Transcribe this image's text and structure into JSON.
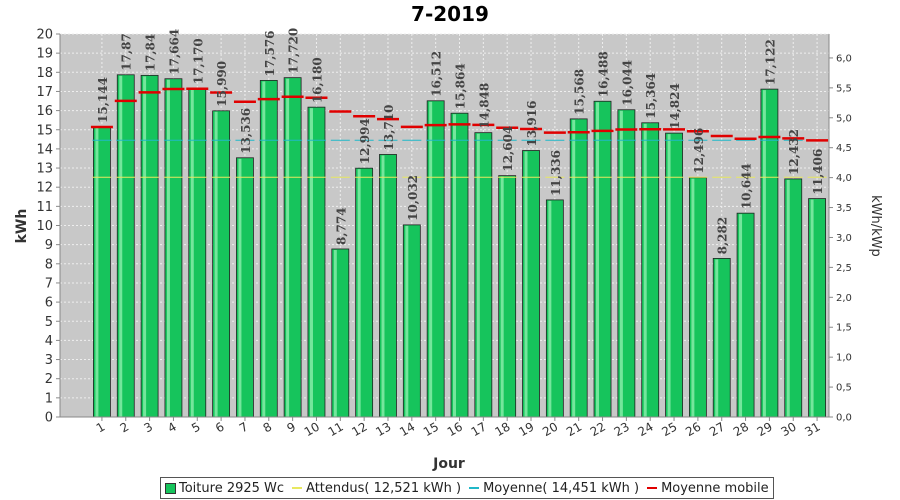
{
  "chart_data": {
    "type": "bar",
    "title": "7-2019",
    "xlabel": "Jour",
    "ylabel": "kWh",
    "y2label": "kWh/kWp",
    "ylim": [
      0,
      20
    ],
    "y2lim": [
      0,
      6.4
    ],
    "grid": true,
    "legend_position": "bottom",
    "categories": [
      "1",
      "2",
      "3",
      "4",
      "5",
      "6",
      "7",
      "8",
      "9",
      "10",
      "11",
      "12",
      "13",
      "14",
      "15",
      "16",
      "17",
      "18",
      "19",
      "20",
      "21",
      "22",
      "23",
      "24",
      "25",
      "26",
      "27",
      "28",
      "29",
      "30",
      "31"
    ],
    "value_labels": [
      "15,144",
      "17,87",
      "17,84",
      "17,664",
      "17,170",
      "15,990",
      "13,536",
      "17,576",
      "17,720",
      "16,180",
      "8,774",
      "12,994",
      "13,710",
      "10,032",
      "16,512",
      "15,864",
      "14,848",
      "12,604",
      "13,916",
      "11,336",
      "15,568",
      "16,488",
      "16,044",
      "15,364",
      "14,824",
      "12,496",
      "8,282",
      "10,644",
      "17,122",
      "12,432",
      "11,406"
    ],
    "series": [
      {
        "name": "Toiture 2925 Wc",
        "kind": "bar",
        "color": "#16c45c",
        "values": [
          15.144,
          17.87,
          17.84,
          17.664,
          17.17,
          15.99,
          13.536,
          17.576,
          17.72,
          16.18,
          8.774,
          12.994,
          13.71,
          10.032,
          16.512,
          15.864,
          14.848,
          12.604,
          13.916,
          11.336,
          15.568,
          16.488,
          16.044,
          15.364,
          14.824,
          12.496,
          8.282,
          10.644,
          17.122,
          12.432,
          11.406
        ]
      },
      {
        "name": "Attendus( 12,521 kWh )",
        "kind": "hline",
        "color": "#e8e860",
        "value": 12.521
      },
      {
        "name": "Moyenne( 14,451 kWh )",
        "kind": "hline",
        "color": "#20b8c8",
        "value": 14.451
      },
      {
        "name": "Moyenne mobile",
        "kind": "step",
        "color": "#e00000",
        "values": [
          15.144,
          16.507,
          16.951,
          17.13,
          17.138,
          16.946,
          16.459,
          16.599,
          16.723,
          16.669,
          15.951,
          15.705,
          15.552,
          15.15,
          15.24,
          15.279,
          15.253,
          15.105,
          15.042,
          14.853,
          14.87,
          14.944,
          15.012,
          15.026,
          15.018,
          14.921,
          14.675,
          14.532,
          14.62,
          14.547,
          14.445
        ]
      }
    ],
    "y_ticks": [
      "0",
      "1",
      "2",
      "3",
      "4",
      "5",
      "6",
      "7",
      "8",
      "9",
      "10",
      "11",
      "12",
      "13",
      "14",
      "15",
      "16",
      "17",
      "18",
      "19",
      "20"
    ],
    "y2_ticks": [
      "0,0",
      "0,5",
      "1,0",
      "1,5",
      "2,0",
      "2,5",
      "3,0",
      "3,5",
      "4,0",
      "4,5",
      "5,0",
      "5,5",
      "6,0"
    ]
  },
  "legend": [
    {
      "label": "Toiture 2925 Wc",
      "type": "box",
      "color": "#16c45c"
    },
    {
      "label": "Attendus( 12,521 kWh )",
      "type": "line",
      "color": "#e8e860"
    },
    {
      "label": "Moyenne( 14,451 kWh )",
      "type": "line",
      "color": "#20b8c8"
    },
    {
      "label": "Moyenne mobile",
      "type": "line",
      "color": "#e00000"
    }
  ]
}
